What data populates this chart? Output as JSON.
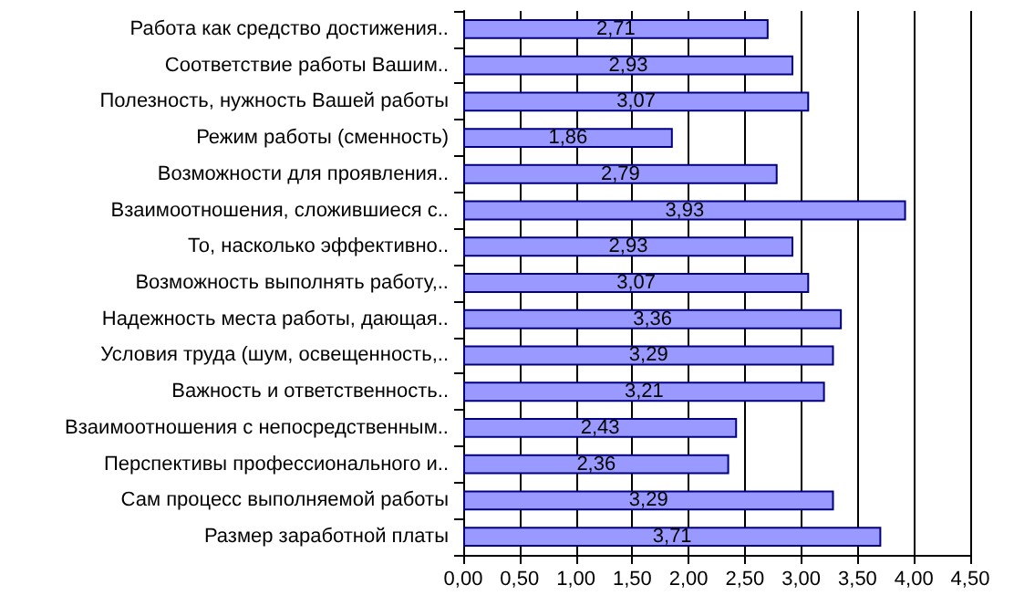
{
  "chart_data": {
    "type": "bar",
    "orientation": "horizontal",
    "categories": [
      "Работа как средство достижения..",
      "Соответствие работы Вашим..",
      "Полезность, нужность Вашей работы",
      "Режим работы (сменность)",
      "Возможности для проявления..",
      "Взаимоотношения, сложившиеся с..",
      "То, насколько эффективно..",
      "Возможность выполнять работу,..",
      "Надежность места работы, дающая..",
      "Условия труда (шум, освещенность,..",
      "Важность и ответственность..",
      "Взаимоотношения с непосредственным..",
      "Перспективы профессионального и..",
      "Сам процесс выполняемой работы",
      "Размер заработной платы"
    ],
    "values": [
      2.71,
      2.93,
      3.07,
      1.86,
      2.79,
      3.93,
      2.93,
      3.07,
      3.36,
      3.29,
      3.21,
      2.43,
      2.36,
      3.29,
      3.71
    ],
    "value_labels": [
      "2,71",
      "2,93",
      "3,07",
      "1,86",
      "2,79",
      "3,93",
      "2,93",
      "3,07",
      "3,36",
      "3,29",
      "3,21",
      "2,43",
      "2,36",
      "3,29",
      "3,71"
    ],
    "color": "#9999ff",
    "xlim": [
      0,
      4.5
    ],
    "xticks": [
      {
        "value": 0,
        "label": "0,00"
      },
      {
        "value": 0.5,
        "label": "0,50"
      },
      {
        "value": 1,
        "label": "1,00"
      },
      {
        "value": 1.5,
        "label": "1,50"
      },
      {
        "value": 2,
        "label": "2,00"
      },
      {
        "value": 2.5,
        "label": "2,50"
      },
      {
        "value": 3,
        "label": "3,00"
      },
      {
        "value": 3.5,
        "label": "3,50"
      },
      {
        "value": 4,
        "label": "4,00"
      },
      {
        "value": 4.5,
        "label": "4,50"
      }
    ],
    "grid": "x"
  }
}
